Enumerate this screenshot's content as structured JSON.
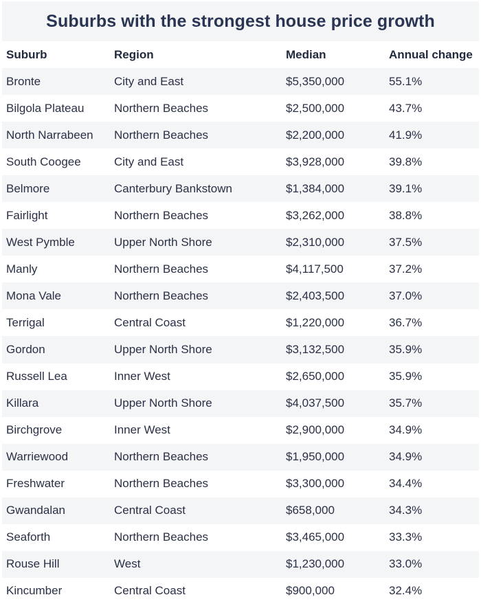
{
  "title": "Suburbs with the strongest house price growth",
  "columns": [
    "Suburb",
    "Region",
    "Median",
    "Annual change"
  ],
  "rows": [
    [
      "Bronte",
      "City and East",
      "$5,350,000",
      "55.1%"
    ],
    [
      "Bilgola Plateau",
      "Northern Beaches",
      "$2,500,000",
      "43.7%"
    ],
    [
      "North Narrabeen",
      "Northern Beaches",
      "$2,200,000",
      "41.9%"
    ],
    [
      "South Coogee",
      "City and East",
      "$3,928,000",
      "39.8%"
    ],
    [
      "Belmore",
      "Canterbury Bankstown",
      "$1,384,000",
      "39.1%"
    ],
    [
      "Fairlight",
      "Northern Beaches",
      "$3,262,000",
      "38.8%"
    ],
    [
      "West Pymble",
      "Upper North Shore",
      "$2,310,000",
      "37.5%"
    ],
    [
      "Manly",
      "Northern Beaches",
      "$4,117,500",
      "37.2%"
    ],
    [
      "Mona Vale",
      "Northern Beaches",
      "$2,403,500",
      "37.0%"
    ],
    [
      "Terrigal",
      "Central Coast",
      "$1,220,000",
      "36.7%"
    ],
    [
      "Gordon",
      "Upper North Shore",
      "$3,132,500",
      "35.9%"
    ],
    [
      "Russell Lea",
      "Inner West",
      "$2,650,000",
      "35.9%"
    ],
    [
      "Killara",
      "Upper North Shore",
      "$4,037,500",
      "35.7%"
    ],
    [
      "Birchgrove",
      "Inner West",
      "$2,900,000",
      "34.9%"
    ],
    [
      "Warriewood",
      "Northern Beaches",
      "$1,950,000",
      "34.9%"
    ],
    [
      "Freshwater",
      "Northern Beaches",
      "$3,300,000",
      "34.4%"
    ],
    [
      "Gwandalan",
      "Central Coast",
      "$658,000",
      "34.3%"
    ],
    [
      "Seaforth",
      "Northern Beaches",
      "$3,465,000",
      "33.3%"
    ],
    [
      "Rouse Hill",
      "West",
      "$1,230,000",
      "33.0%"
    ],
    [
      "Kincumber",
      "Central Coast",
      "$900,000",
      "32.4%"
    ]
  ]
}
